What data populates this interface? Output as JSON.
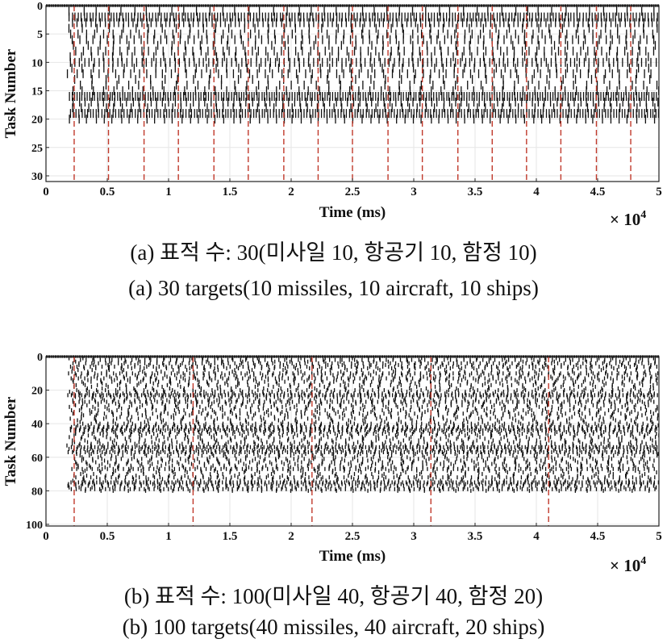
{
  "figure": {
    "caption_a_ko": "(a) 표적 수: 30(미사일 10, 항공기 10, 함정 10)",
    "caption_a_en": "(a) 30 targets(10 missiles, 10 aircraft, 10 ships)",
    "caption_b_ko": "(b) 표적 수: 100(미사일 40, 항공기 40, 함정 20)",
    "caption_b_en": "(b) 100 targets(40 missiles, 40 aircraft, 20 ships)"
  },
  "chart_data": [
    {
      "type": "scatter",
      "title": "",
      "xlabel": "Time (ms)",
      "ylabel": "Task Number",
      "x_multiplier": "× 10^4",
      "x_multiplier_base": "× 10",
      "x_multiplier_exp": "4",
      "xlim": [
        0,
        50000
      ],
      "ylim": [
        0,
        31
      ],
      "y_inverted": true,
      "x_ticks": [
        0,
        0.5,
        1,
        1.5,
        2,
        2.5,
        3,
        3.5,
        4,
        4.5,
        5
      ],
      "x_tick_labels": [
        "0",
        "0.5",
        "1",
        "1.5",
        "2",
        "2.5",
        "3",
        "3.5",
        "4",
        "4.5",
        "5"
      ],
      "y_ticks": [
        0,
        5,
        10,
        15,
        20,
        25,
        30
      ],
      "y_tick_labels": [
        "0",
        "5",
        "10",
        "15",
        "20",
        "25",
        "30"
      ],
      "grid": true,
      "marker": "vertical tick per scheduled task execution",
      "task_range": [
        1,
        20
      ],
      "task_period_ms": [
        200,
        1400
      ],
      "top_row_task": 0,
      "scheduling_boundaries_ms": [
        2300,
        5100,
        8000,
        10800,
        13700,
        16500,
        19400,
        22200,
        25000,
        27900,
        30700,
        33600,
        36400,
        39200,
        42000,
        44900,
        47700
      ],
      "colors": {
        "marks": "#111111",
        "boundaries": "#c0392b",
        "grid": "#e6e6e6"
      }
    },
    {
      "type": "scatter",
      "title": "",
      "xlabel": "Time (ms)",
      "ylabel": "Task Number",
      "x_multiplier": "× 10^4",
      "x_multiplier_base": "× 10",
      "x_multiplier_exp": "4",
      "xlim": [
        0,
        50000
      ],
      "ylim": [
        0,
        101
      ],
      "y_inverted": true,
      "x_ticks": [
        0,
        0.5,
        1,
        1.5,
        2,
        2.5,
        3,
        3.5,
        4,
        4.5,
        5
      ],
      "x_tick_labels": [
        "0",
        "0.5",
        "1",
        "1.5",
        "2",
        "2.5",
        "3",
        "3.5",
        "4",
        "4.5",
        "5"
      ],
      "y_ticks": [
        0,
        20,
        40,
        60,
        80,
        100
      ],
      "y_tick_labels": [
        "0",
        "20",
        "40",
        "60",
        "80",
        "100"
      ],
      "grid": true,
      "marker": "vertical tick per scheduled task execution",
      "task_range": [
        1,
        80
      ],
      "task_period_ms": [
        250,
        1500
      ],
      "top_row_task": 0,
      "scheduling_boundaries_ms": [
        2300,
        12000,
        21700,
        31400,
        41000
      ],
      "colors": {
        "marks": "#111111",
        "boundaries": "#c0392b",
        "grid": "#e6e6e6"
      }
    }
  ]
}
